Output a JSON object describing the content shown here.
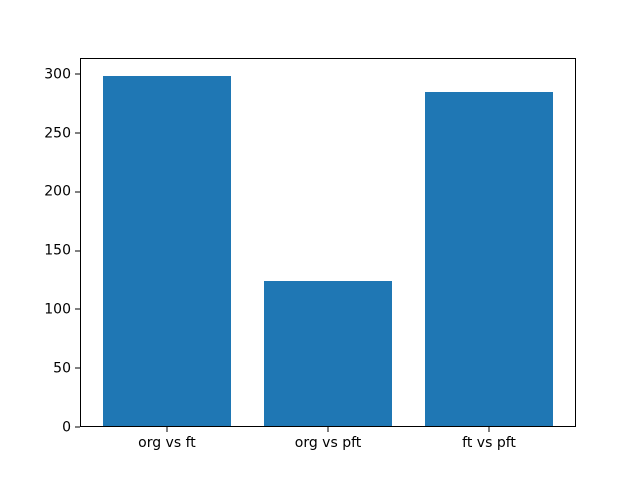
{
  "chart_data": {
    "type": "bar",
    "title": "",
    "xlabel": "",
    "ylabel": "",
    "categories": [
      "org vs ft",
      "org vs pft",
      "ft vs pft"
    ],
    "values": [
      299,
      124,
      285
    ],
    "yticks": [
      0,
      50,
      100,
      150,
      200,
      250,
      300
    ],
    "ylim": [
      0,
      314
    ],
    "bar_color": "#1f77b4",
    "background_color": "#ffffff",
    "spine_color": "#000000",
    "grid": false,
    "legend": null
  }
}
